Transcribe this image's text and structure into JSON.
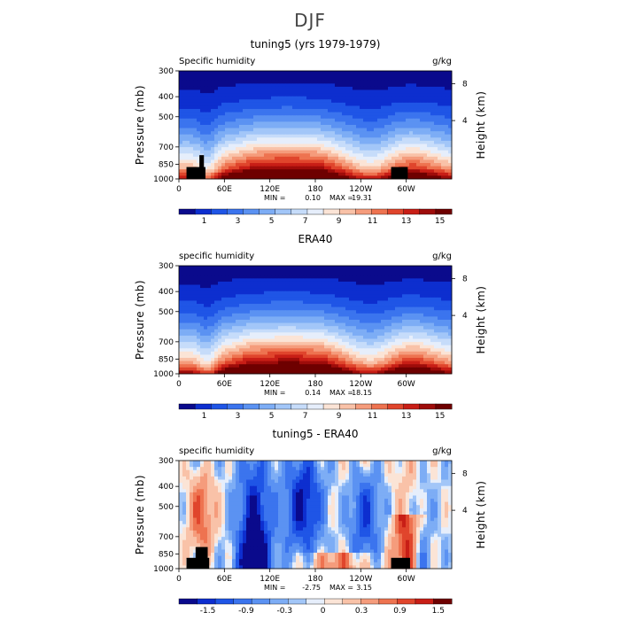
{
  "figure_title": "DJF",
  "chart_data": [
    {
      "type": "heatmap",
      "title": "tuning5 (yrs 1979-1979)",
      "variable_label": "Specific humidity",
      "units": "g/kg",
      "ylabel": "Pressure (mb)",
      "ylabel_right": "Height (km)",
      "x_ticks": [
        "0",
        "60E",
        "120E",
        "180",
        "120W",
        "60W"
      ],
      "y_ticks": [
        "300",
        "400",
        "500",
        "700",
        "850",
        "1000"
      ],
      "y_ticks_right": [
        "8",
        "4"
      ],
      "stats": {
        "min_label": "MIN =",
        "min": "0.10",
        "max_label": "MAX =",
        "max": "19.31"
      },
      "colorbar_labels": [
        "1",
        "3",
        "5",
        "7",
        "9",
        "11",
        "13",
        "15"
      ],
      "colorbar_colors": [
        "#0a0a8c",
        "#0d2ecf",
        "#1f55e6",
        "#3b74ee",
        "#5b92f2",
        "#7dadf5",
        "#a2c6f8",
        "#c6dcfa",
        "#e6eefb",
        "#fbe4d6",
        "#f9c2a8",
        "#f59c7c",
        "#ee7350",
        "#e0452c",
        "#c81e16",
        "#9e0c0a",
        "#6e0000"
      ],
      "field": "q_model"
    },
    {
      "type": "heatmap",
      "title": "ERA40",
      "variable_label": "specific humidity",
      "units": "g/kg",
      "ylabel": "Pressure (mb)",
      "ylabel_right": "Height (km)",
      "x_ticks": [
        "0",
        "60E",
        "120E",
        "180",
        "120W",
        "60W"
      ],
      "y_ticks": [
        "300",
        "400",
        "500",
        "700",
        "850",
        "1000"
      ],
      "y_ticks_right": [
        "8",
        "4"
      ],
      "stats": {
        "min_label": "MIN =",
        "min": "0.14",
        "max_label": "MAX =",
        "max": "18.15"
      },
      "colorbar_labels": [
        "1",
        "3",
        "5",
        "7",
        "9",
        "11",
        "13",
        "15"
      ],
      "colorbar_colors": [
        "#0a0a8c",
        "#0d2ecf",
        "#1f55e6",
        "#3b74ee",
        "#5b92f2",
        "#7dadf5",
        "#a2c6f8",
        "#c6dcfa",
        "#e6eefb",
        "#fbe4d6",
        "#f9c2a8",
        "#f59c7c",
        "#ee7350",
        "#e0452c",
        "#c81e16",
        "#9e0c0a",
        "#6e0000"
      ],
      "field": "q_era"
    },
    {
      "type": "heatmap",
      "title": "tuning5 - ERA40",
      "variable_label": "specific humidity",
      "units": "g/kg",
      "ylabel": "Pressure (mb)",
      "ylabel_right": "Height (km)",
      "x_ticks": [
        "0",
        "60E",
        "120E",
        "180",
        "120W",
        "60W"
      ],
      "y_ticks": [
        "300",
        "400",
        "500",
        "700",
        "850",
        "1000"
      ],
      "y_ticks_right": [
        "8",
        "4"
      ],
      "stats": {
        "min_label": "MIN =",
        "min": "-2.75",
        "max_label": "MAX =",
        "max": "3.15"
      },
      "colorbar_labels": [
        "-1.5",
        "-0.9",
        "-0.3",
        "0",
        "0.3",
        "0.9",
        "1.5"
      ],
      "colorbar_colors": [
        "#0a0a8c",
        "#0d2ecf",
        "#1f55e6",
        "#3b74ee",
        "#5b92f2",
        "#7dadf5",
        "#a2c6f8",
        "#e6eefb",
        "#fbe4d6",
        "#f9c2a8",
        "#f59c7c",
        "#ee7350",
        "#e0452c",
        "#c81e16",
        "#6e0000"
      ],
      "field": "q_diff"
    }
  ]
}
